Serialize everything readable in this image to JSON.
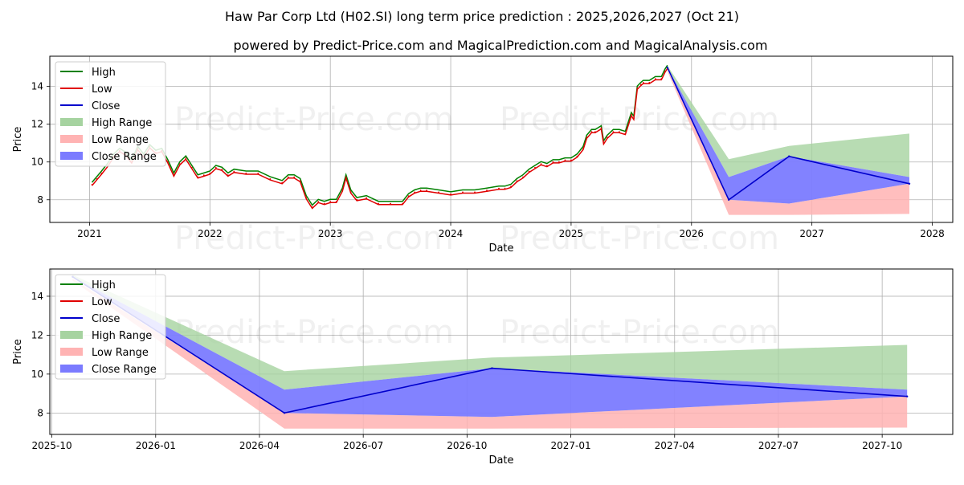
{
  "title": "Haw Par Corp Ltd (H02.SI) long term price prediction : 2025,2026,2027 (Oct 21)",
  "subtitle": "powered by Predict-Price.com and MagicalPrediction.com and MagicalAnalysis.com",
  "watermark": "Predict-Price.com",
  "colors": {
    "high": "#008000",
    "low": "#e00000",
    "close": "#0000cc",
    "high_range": "#a6d3a0",
    "low_range": "#ffb3b3",
    "close_range": "#7b7bff",
    "grid": "#b0b0b0"
  },
  "legend": [
    {
      "label": "High",
      "key": "high",
      "kind": "line"
    },
    {
      "label": "Low",
      "key": "low",
      "kind": "line"
    },
    {
      "label": "Close",
      "key": "close",
      "kind": "line"
    },
    {
      "label": "High Range",
      "key": "high_range",
      "kind": "patch"
    },
    {
      "label": "Low Range",
      "key": "low_range",
      "kind": "patch"
    },
    {
      "label": "Close Range",
      "key": "close_range",
      "kind": "patch"
    }
  ],
  "chart_data": [
    {
      "type": "line",
      "xlabel": "Date",
      "ylabel": "Price",
      "xlim": [
        2020.67,
        2028.17
      ],
      "ylim": [
        6.8,
        15.6
      ],
      "xticks": [
        2021,
        2022,
        2023,
        2024,
        2025,
        2026,
        2027,
        2028
      ],
      "xtick_labels": [
        "2021",
        "2022",
        "2023",
        "2024",
        "2025",
        "2026",
        "2027",
        "2028"
      ],
      "yticks": [
        8,
        10,
        12,
        14
      ],
      "ytick_labels": [
        "8",
        "10",
        "12",
        "14"
      ],
      "grid": true,
      "legend_position": "top-left",
      "history": {
        "x": [
          2021.02,
          2021.06,
          2021.1,
          2021.15,
          2021.2,
          2021.25,
          2021.3,
          2021.35,
          2021.4,
          2021.45,
          2021.5,
          2021.55,
          2021.6,
          2021.65,
          2021.7,
          2021.75,
          2021.8,
          2021.85,
          2021.9,
          2021.95,
          2022.0,
          2022.05,
          2022.1,
          2022.15,
          2022.2,
          2022.3,
          2022.4,
          2022.5,
          2022.6,
          2022.65,
          2022.7,
          2022.75,
          2022.8,
          2022.85,
          2022.9,
          2022.95,
          2023.0,
          2023.05,
          2023.1,
          2023.13,
          2023.17,
          2023.22,
          2023.3,
          2023.4,
          2023.5,
          2023.6,
          2023.65,
          2023.7,
          2023.75,
          2023.8,
          2023.9,
          2024.0,
          2024.1,
          2024.2,
          2024.3,
          2024.4,
          2024.45,
          2024.5,
          2024.55,
          2024.6,
          2024.65,
          2024.7,
          2024.75,
          2024.8,
          2024.85,
          2024.9,
          2024.95,
          2025.0,
          2025.05,
          2025.1,
          2025.13,
          2025.17,
          2025.2,
          2025.25,
          2025.27,
          2025.3,
          2025.35,
          2025.4,
          2025.45,
          2025.5,
          2025.52,
          2025.55,
          2025.58,
          2025.6,
          2025.65,
          2025.7,
          2025.75,
          2025.78,
          2025.8
        ],
        "close": [
          8.8,
          9.1,
          9.4,
          9.8,
          10.3,
          10.6,
          10.4,
          10.0,
          10.7,
          10.3,
          10.8,
          10.5,
          10.6,
          10.0,
          9.3,
          9.9,
          10.2,
          9.7,
          9.2,
          9.3,
          9.4,
          9.7,
          9.6,
          9.3,
          9.5,
          9.4,
          9.4,
          9.1,
          8.9,
          9.2,
          9.2,
          9.0,
          8.1,
          7.6,
          7.9,
          7.8,
          7.9,
          7.9,
          8.5,
          9.2,
          8.4,
          8.0,
          8.1,
          7.8,
          7.8,
          7.8,
          8.2,
          8.4,
          8.5,
          8.5,
          8.4,
          8.3,
          8.4,
          8.4,
          8.5,
          8.6,
          8.6,
          8.7,
          9.0,
          9.2,
          9.5,
          9.7,
          9.9,
          9.8,
          10.0,
          10.0,
          10.1,
          10.1,
          10.3,
          10.7,
          11.3,
          11.6,
          11.6,
          11.8,
          11.0,
          11.3,
          11.6,
          11.6,
          11.5,
          12.5,
          12.3,
          13.9,
          14.1,
          14.2,
          14.2,
          14.4,
          14.4,
          14.8,
          15.0
        ]
      },
      "forecast": {
        "x": [
          2025.8,
          2026.31,
          2026.81,
          2027.81
        ],
        "close": [
          15.0,
          8.0,
          10.3,
          8.85
        ],
        "high_range_upper": [
          15.1,
          10.15,
          10.85,
          11.5
        ],
        "high_range_lower": [
          15.0,
          9.2,
          10.3,
          9.2
        ],
        "close_range_upper": [
          15.0,
          9.2,
          10.3,
          9.2
        ],
        "close_range_lower": [
          15.0,
          8.0,
          7.8,
          8.85
        ],
        "low_range_upper": [
          14.9,
          8.0,
          7.8,
          8.85
        ],
        "low_range_lower": [
          14.8,
          7.2,
          7.2,
          7.25
        ]
      }
    },
    {
      "type": "line",
      "xlabel": "Date",
      "ylabel": "Price",
      "xlim": [
        2025.745,
        2027.92
      ],
      "ylim": [
        6.9,
        15.4
      ],
      "xticks": [
        2025.75,
        2026.0,
        2026.25,
        2026.5,
        2026.75,
        2027.0,
        2027.25,
        2027.5,
        2027.75
      ],
      "xtick_labels": [
        "2025-10",
        "2026-01",
        "2026-04",
        "2026-07",
        "2026-10",
        "2027-01",
        "2027-04",
        "2027-07",
        "2027-10"
      ],
      "yticks": [
        8,
        10,
        12,
        14
      ],
      "ytick_labels": [
        "8",
        "10",
        "12",
        "14"
      ],
      "grid": true,
      "legend_position": "top-left",
      "forecast": {
        "x": [
          2025.8,
          2026.31,
          2026.81,
          2027.81
        ],
        "close": [
          15.0,
          8.0,
          10.3,
          8.85
        ],
        "high_range_upper": [
          15.1,
          10.15,
          10.85,
          11.5
        ],
        "high_range_lower": [
          15.0,
          9.2,
          10.3,
          9.2
        ],
        "close_range_upper": [
          15.0,
          9.2,
          10.3,
          9.2
        ],
        "close_range_lower": [
          15.0,
          8.0,
          7.8,
          8.85
        ],
        "low_range_upper": [
          14.9,
          8.0,
          7.8,
          8.85
        ],
        "low_range_lower": [
          14.8,
          7.2,
          7.2,
          7.25
        ]
      }
    }
  ]
}
